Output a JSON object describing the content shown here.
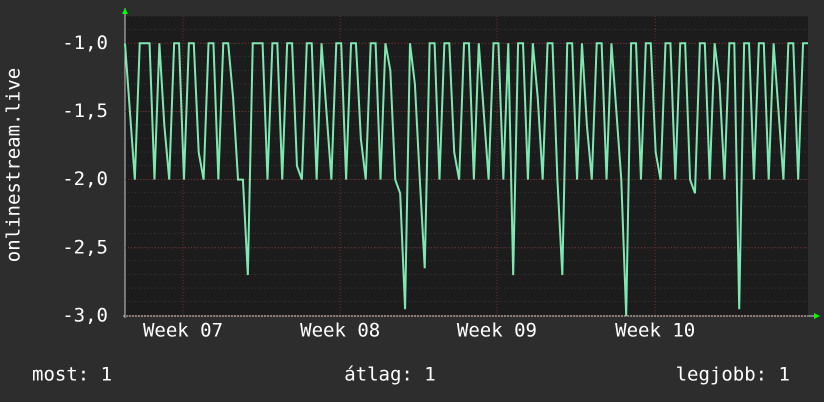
{
  "chart_data": {
    "type": "line",
    "ylabel": "onlinestream.live",
    "series": [
      {
        "name": "onlinestream.live",
        "color": "#7fe8b2",
        "values": [
          -1,
          -1.5,
          -2,
          -1,
          -1,
          -1,
          -2,
          -1,
          -1.6,
          -2,
          -1,
          -1,
          -2,
          -1,
          -1,
          -1.8,
          -2,
          -1,
          -1,
          -2,
          -1,
          -1,
          -1.4,
          -2,
          -2,
          -2.7,
          -1,
          -1,
          -1,
          -2,
          -1,
          -1,
          -2,
          -1,
          -1,
          -1.9,
          -2,
          -1,
          -1,
          -2,
          -1,
          -1.5,
          -2,
          -1,
          -1,
          -2,
          -1,
          -1,
          -1.7,
          -2,
          -1,
          -1,
          -2,
          -1,
          -1.2,
          -2,
          -2.1,
          -2.95,
          -1,
          -1.3,
          -2,
          -2.65,
          -1,
          -1,
          -2,
          -1,
          -1,
          -1.8,
          -2,
          -1,
          -1,
          -2,
          -1,
          -1.5,
          -2,
          -1,
          -1,
          -2,
          -1,
          -2.7,
          -1,
          -1,
          -2,
          -1,
          -1.4,
          -2,
          -1,
          -1,
          -2,
          -2.7,
          -1,
          -1,
          -2,
          -1,
          -1.6,
          -2,
          -1,
          -1,
          -2,
          -1,
          -1.5,
          -2,
          -3,
          -1,
          -1,
          -2,
          -1,
          -1,
          -1.8,
          -2,
          -1,
          -1,
          -2,
          -1,
          -1,
          -2,
          -2.1,
          -1,
          -1,
          -2,
          -1,
          -1.3,
          -2,
          -1,
          -1,
          -2.95,
          -1,
          -1,
          -2,
          -1,
          -1,
          -2,
          -1,
          -1.5,
          -2,
          -1,
          -1,
          -2,
          -1,
          -1
        ]
      }
    ],
    "xlim": [
      0,
      139
    ],
    "xticks": [
      {
        "value": 11.8,
        "label": "Week 07"
      },
      {
        "value": 43.8,
        "label": "Week 08"
      },
      {
        "value": 75.7,
        "label": "Week 09"
      },
      {
        "value": 107.9,
        "label": "Week 10"
      }
    ],
    "ylim": [
      -3,
      -0.8
    ],
    "yticks": [
      {
        "value": -3,
        "label": "-3,0"
      },
      {
        "value": -2.5,
        "label": "-2,5"
      },
      {
        "value": -2,
        "label": "-2,0"
      },
      {
        "value": -1.5,
        "label": "-1,5"
      },
      {
        "value": -1,
        "label": "-1,0"
      }
    ],
    "grid": true,
    "legend": [
      "most: 1",
      "átlag: 1",
      "legjobb: 1"
    ]
  }
}
